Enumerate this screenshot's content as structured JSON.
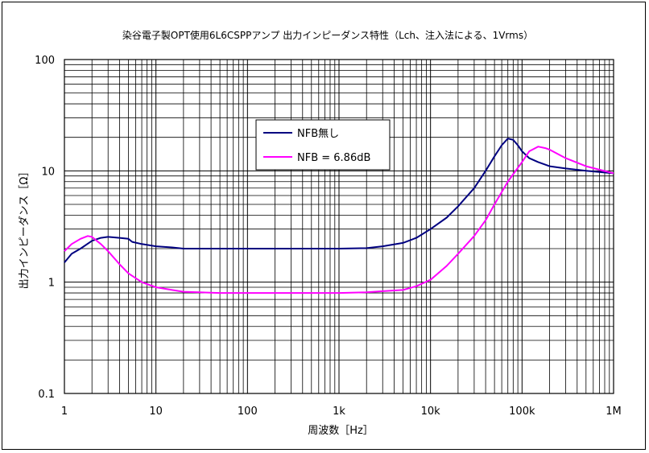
{
  "chart_data": {
    "type": "line",
    "title": "染谷電子製OPT使用6L6CSPPアンプ 出力インピーダンス特性（Lch、注入法による、1Vrms）",
    "xlabel": "周波数［Hz］",
    "ylabel": "出力インピーダンス［Ω］",
    "xscale": "log",
    "yscale": "log",
    "xlim": [
      1,
      1000000
    ],
    "ylim": [
      0.1,
      100
    ],
    "grid": true,
    "legend_position": "upper-center",
    "x_tick_labels": [
      "1",
      "10",
      "100",
      "1k",
      "10k",
      "100k",
      "1M"
    ],
    "y_tick_labels": [
      "0.1",
      "1",
      "10",
      "100"
    ],
    "series": [
      {
        "name": "NFB無し",
        "color": "#000080",
        "x": [
          1,
          1.2,
          1.5,
          2,
          2.5,
          3,
          4,
          5,
          5.5,
          7,
          10,
          15,
          20,
          50,
          100,
          200,
          500,
          1000,
          2000,
          3000,
          5000,
          7000,
          10000,
          15000,
          20000,
          30000,
          40000,
          50000,
          60000,
          70000,
          80000,
          90000,
          100000,
          120000,
          150000,
          200000,
          300000,
          500000,
          1000000
        ],
        "y": [
          1.5,
          1.8,
          2.0,
          2.35,
          2.5,
          2.55,
          2.5,
          2.45,
          2.3,
          2.2,
          2.1,
          2.05,
          2.0,
          2.0,
          2.0,
          2.0,
          2.0,
          2.0,
          2.02,
          2.1,
          2.25,
          2.5,
          3.0,
          3.8,
          4.8,
          7.0,
          10.0,
          13.5,
          17.0,
          19.5,
          19.0,
          17.0,
          15.0,
          13.0,
          12.0,
          11.0,
          10.5,
          10.0,
          9.5
        ]
      },
      {
        "name": "NFB = 6.86dB",
        "color": "#FF00FF",
        "x": [
          1,
          1.2,
          1.5,
          1.8,
          2,
          2.5,
          3,
          4,
          5,
          7,
          10,
          15,
          20,
          50,
          100,
          200,
          500,
          1000,
          2000,
          3000,
          5000,
          7000,
          10000,
          15000,
          20000,
          30000,
          40000,
          50000,
          70000,
          100000,
          120000,
          150000,
          180000,
          200000,
          300000,
          500000,
          1000000
        ],
        "y": [
          1.9,
          2.2,
          2.45,
          2.6,
          2.55,
          2.2,
          1.9,
          1.45,
          1.2,
          1.0,
          0.9,
          0.85,
          0.82,
          0.8,
          0.8,
          0.8,
          0.8,
          0.8,
          0.81,
          0.83,
          0.85,
          0.92,
          1.05,
          1.4,
          1.8,
          2.6,
          3.6,
          5.0,
          8.0,
          12.0,
          15.0,
          16.5,
          16.0,
          15.5,
          13.0,
          11.0,
          9.5
        ]
      }
    ]
  }
}
